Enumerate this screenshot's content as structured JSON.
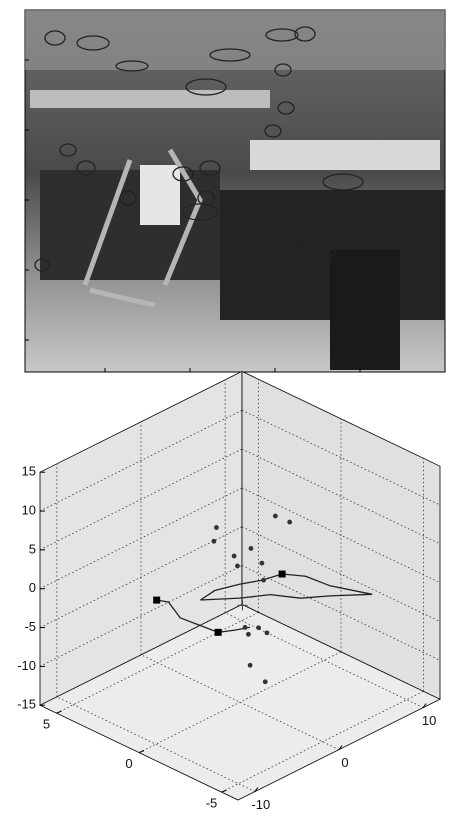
{
  "chart_data": {
    "type": "scatter3d",
    "xlim": [
      -12,
      12
    ],
    "ylim": [
      -6,
      6
    ],
    "zlim": [
      -15,
      15
    ],
    "xticks": [
      -10,
      0,
      10
    ],
    "yticks": [
      -5,
      0,
      5
    ],
    "zticks": [
      -15,
      -10,
      -5,
      0,
      5,
      10,
      15
    ],
    "grid": true,
    "color": "#333333",
    "points": {
      "x": [
        -2.8,
        -3.1,
        4.2,
        5.9,
        1.3,
        -0.7,
        2.6,
        -0.3,
        2.8,
        0.6,
        2.2,
        1.0,
        3.2,
        1.2,
        3.0
      ],
      "y": [
        0,
        0,
        0,
        0,
        0,
        0,
        0,
        0,
        0,
        0,
        0,
        0,
        0,
        0,
        0
      ],
      "z": [
        9.0,
        7.4,
        6.7,
        5.0,
        4.1,
        4.2,
        1.5,
        2.7,
        -0.8,
        -5.7,
        -6.6,
        -6.8,
        -7.8,
        -10.9,
        -14.0
      ]
    },
    "cameras": {
      "x": [
        -9.9,
        -2.6,
        5.0
      ],
      "y": [
        0,
        0,
        0
      ],
      "z": [
        3.5,
        -4.6,
        -1.2
      ]
    },
    "origin": {
      "x": [
        0.3
      ],
      "y": [
        0
      ],
      "z": [
        -2.7
      ]
    },
    "paths": [
      {
        "x": [
          -9.9,
          -8.5,
          -7.1,
          -2.6,
          -0.6,
          1.2
        ],
        "y": [
          0,
          0,
          0,
          0,
          0,
          0
        ],
        "z": [
          3.5,
          2.5,
          -0.3,
          -4.6,
          -5.4,
          -6.0
        ]
      },
      {
        "x": [
          -4.7,
          -3.0,
          0.0,
          2.6,
          5.0,
          7.8,
          10.7,
          15.7,
          10.7,
          7.2,
          3.6,
          0.0,
          -4.7
        ],
        "y": [
          0,
          0,
          0,
          0,
          0,
          0,
          0,
          0,
          0,
          0,
          0,
          0,
          0
        ],
        "z": [
          0.7,
          1.0,
          0.2,
          -0.7,
          -1.2,
          -3.0,
          -5.8,
          -9.6,
          -7.1,
          -5.5,
          -3.1,
          -1.6,
          0.7
        ]
      }
    ]
  }
}
